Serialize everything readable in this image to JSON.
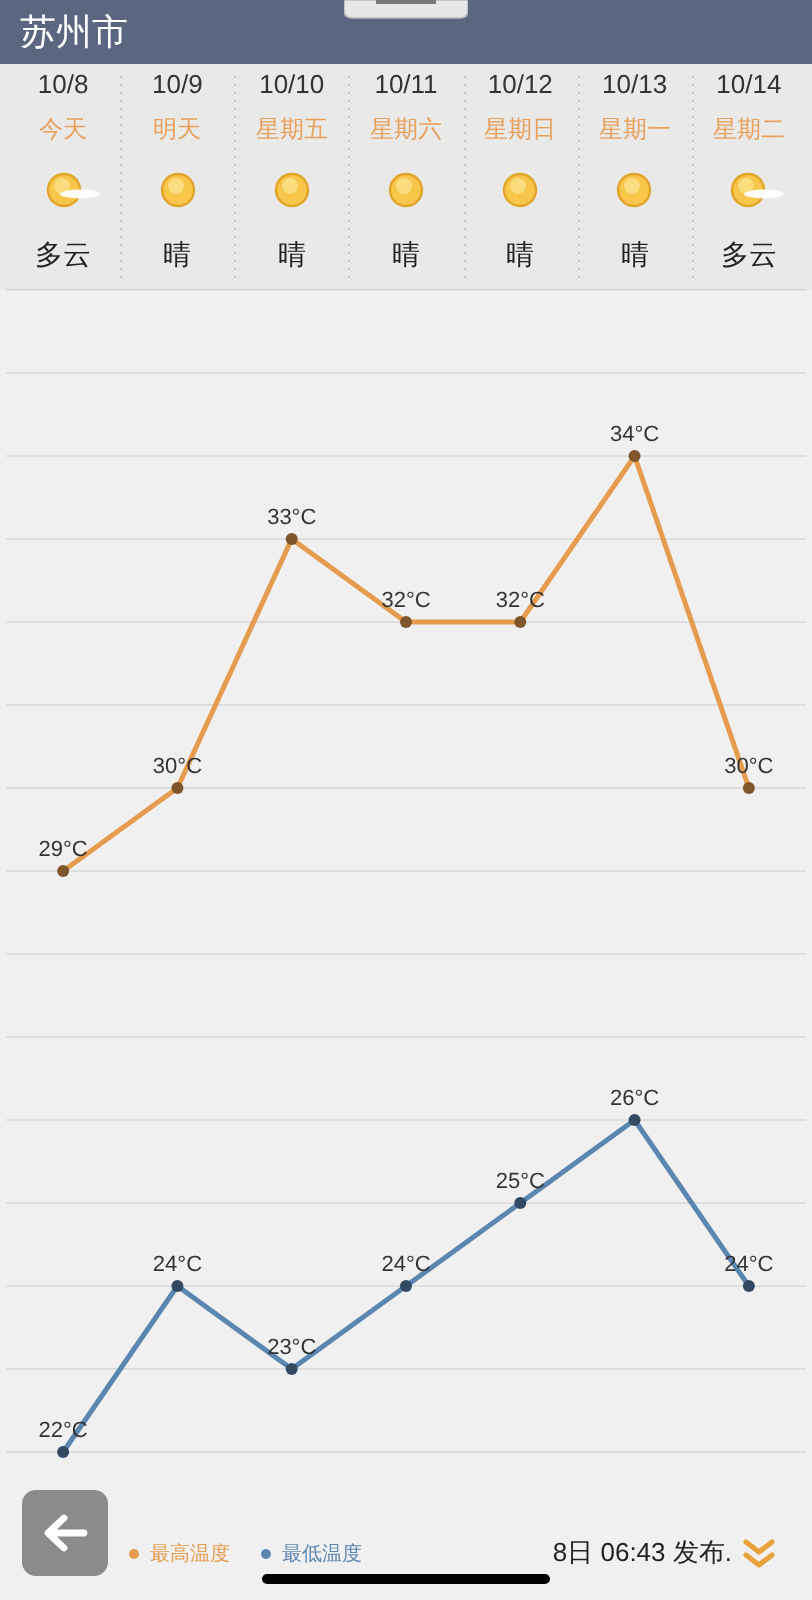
{
  "chart_data": {
    "type": "line",
    "title": "苏州市",
    "categories": [
      "10/8",
      "10/9",
      "10/10",
      "10/11",
      "10/12",
      "10/13",
      "10/14"
    ],
    "series": [
      {
        "name": "最高温度",
        "color": "#e69c4e",
        "values": [
          29,
          30,
          33,
          32,
          32,
          34,
          30
        ],
        "value_labels": [
          "29°C",
          "30°C",
          "33°C",
          "32°C",
          "32°C",
          "34°C",
          "30°C"
        ]
      },
      {
        "name": "最低温度",
        "color": "#5b86b0",
        "values": [
          22,
          24,
          23,
          24,
          25,
          26,
          24
        ],
        "value_labels": [
          "22°C",
          "24°C",
          "23°C",
          "24°C",
          "25°C",
          "26°C",
          "24°C"
        ]
      }
    ],
    "ylim": [
      22,
      36
    ],
    "yticks": [
      {
        "value": 22,
        "label": null
      },
      {
        "value": 23,
        "label": null
      },
      {
        "value": 24,
        "label": null
      },
      {
        "value": 25,
        "label": null
      },
      {
        "value": 26,
        "label": null
      },
      {
        "value": 27,
        "label": null
      },
      {
        "value": 28,
        "label": null
      },
      {
        "value": 29,
        "label": null
      },
      {
        "value": 30,
        "label": null
      },
      {
        "value": 31,
        "label": null
      },
      {
        "value": 32,
        "label": null
      },
      {
        "value": 33,
        "label": null
      },
      {
        "value": 34,
        "label": null
      },
      {
        "value": 35,
        "label": null
      },
      {
        "value": 36,
        "label": null
      }
    ],
    "grid": "y",
    "tick_labels": "x",
    "legend": "bottom left",
    "marker": "circle",
    "annotations": [
      "今天",
      "明天",
      "星期五",
      "星期六",
      "星期日",
      "星期一",
      "星期二",
      "多云",
      "晴",
      "晴",
      "晴",
      "晴",
      "晴",
      "多云",
      "8日 06:43 发布."
    ]
  }
}
